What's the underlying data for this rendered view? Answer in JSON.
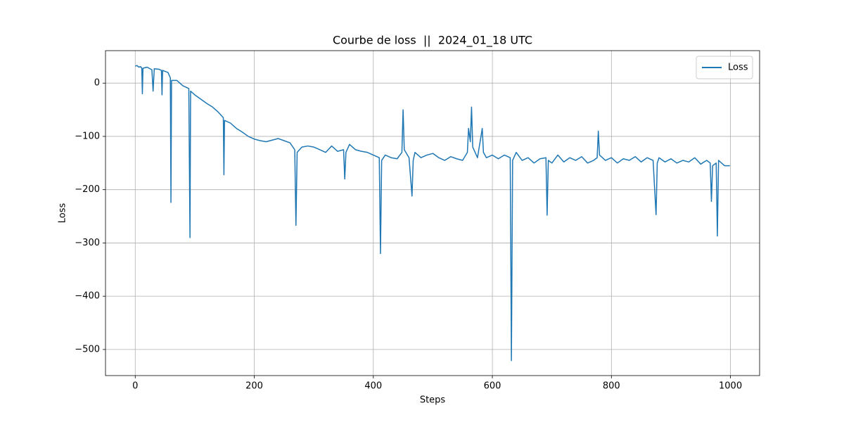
{
  "chart_data": {
    "type": "line",
    "title": "Courbe de loss  ||  2024_01_18 UTC",
    "x_label": "Steps",
    "y_label": "Loss",
    "x": [
      0,
      3,
      6,
      9,
      11,
      12,
      13,
      20,
      28,
      30,
      32,
      40,
      44,
      45,
      46,
      55,
      59,
      60,
      61,
      70,
      80,
      90,
      92,
      93,
      100,
      110,
      120,
      130,
      140,
      148,
      149,
      150,
      160,
      170,
      180,
      190,
      200,
      210,
      220,
      230,
      240,
      250,
      260,
      268,
      270,
      272,
      280,
      290,
      300,
      310,
      320,
      330,
      340,
      350,
      352,
      354,
      360,
      370,
      380,
      390,
      400,
      410,
      412,
      414,
      420,
      430,
      440,
      448,
      450,
      452,
      460,
      465,
      467,
      470,
      480,
      490,
      500,
      510,
      520,
      530,
      540,
      550,
      558,
      560,
      563,
      565,
      567,
      575,
      583,
      585,
      590,
      600,
      610,
      620,
      630,
      632,
      634,
      640,
      650,
      660,
      670,
      680,
      690,
      692,
      694,
      700,
      710,
      720,
      730,
      740,
      750,
      760,
      770,
      776,
      778,
      780,
      790,
      800,
      810,
      820,
      830,
      840,
      850,
      860,
      870,
      875,
      877,
      880,
      890,
      900,
      910,
      920,
      930,
      940,
      950,
      960,
      966,
      968,
      970,
      976,
      978,
      980,
      990,
      999
    ],
    "series": [
      {
        "name": "Loss",
        "color": "#1f77b4",
        "values": [
          32,
          33,
          30,
          31,
          28,
          -20,
          28,
          30,
          25,
          -15,
          27,
          26,
          24,
          -22,
          24,
          20,
          10,
          -224,
          5,
          5,
          -5,
          -10,
          -290,
          -15,
          -22,
          -30,
          -38,
          -45,
          -55,
          -65,
          -172,
          -70,
          -75,
          -85,
          -92,
          -100,
          -105,
          -108,
          -110,
          -107,
          -104,
          -108,
          -112,
          -125,
          -267,
          -130,
          -120,
          -118,
          -120,
          -125,
          -130,
          -118,
          -128,
          -125,
          -180,
          -130,
          -115,
          -125,
          -128,
          -130,
          -135,
          -140,
          -320,
          -145,
          -135,
          -140,
          -142,
          -130,
          -50,
          -125,
          -140,
          -212,
          -145,
          -130,
          -140,
          -135,
          -132,
          -140,
          -145,
          -138,
          -142,
          -145,
          -130,
          -85,
          -110,
          -45,
          -120,
          -140,
          -85,
          -130,
          -140,
          -135,
          -142,
          -135,
          -140,
          -521,
          -145,
          -130,
          -145,
          -140,
          -150,
          -142,
          -140,
          -248,
          -145,
          -150,
          -135,
          -148,
          -140,
          -145,
          -138,
          -150,
          -145,
          -140,
          -90,
          -135,
          -145,
          -140,
          -150,
          -142,
          -145,
          -138,
          -148,
          -140,
          -145,
          -247,
          -150,
          -140,
          -148,
          -142,
          -150,
          -145,
          -148,
          -140,
          -152,
          -145,
          -150,
          -222,
          -155,
          -150,
          -287,
          -145,
          -155,
          -155
        ]
      }
    ],
    "xlim": [
      -49.95,
      1048.95
    ],
    "ylim": [
      -549,
      61
    ],
    "xticks": [
      0,
      200,
      400,
      600,
      800,
      1000
    ],
    "yticks": [
      {
        "value": -500,
        "label": "−500"
      },
      {
        "value": -400,
        "label": "−400"
      },
      {
        "value": -300,
        "label": "−300"
      },
      {
        "value": -200,
        "label": "−200"
      },
      {
        "value": -100,
        "label": "−100"
      },
      0
    ],
    "grid": true,
    "legend": "upper right"
  }
}
